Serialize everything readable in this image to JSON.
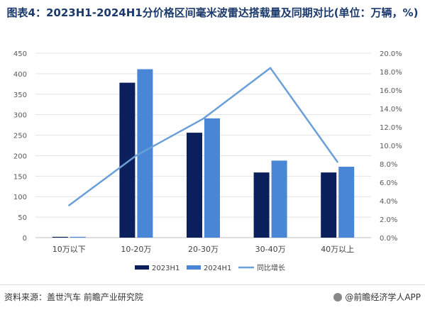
{
  "title": "图表4：2023H1-2024H1分价格区间毫米波雷达搭载量及同期对比(单位：万辆，%)",
  "footer": {
    "source": "资料来源：盖世汽车 前瞻产业研究院",
    "brand": "@前瞻经济学人APP"
  },
  "colors": {
    "s2023": "#0b1f5c",
    "s2024": "#4a86d6",
    "yoy": "#6a9fd8"
  },
  "chart_data": {
    "type": "bar",
    "categories": [
      "10万以下",
      "10-20万",
      "20-30万",
      "30-40万",
      "40万以上"
    ],
    "series": [
      {
        "name": "2023H1",
        "type": "bar",
        "values": [
          2,
          378,
          256,
          159,
          159
        ]
      },
      {
        "name": "2024H1",
        "type": "bar",
        "values": [
          2,
          411,
          291,
          188,
          173
        ]
      },
      {
        "name": "同比增长",
        "type": "line",
        "axis": "right",
        "values": [
          3.5,
          8.9,
          12.9,
          18.4,
          8.2
        ]
      }
    ],
    "yleft": {
      "min": 0,
      "max": 450,
      "ticks": [
        "0",
        "50",
        "100",
        "150",
        "200",
        "250",
        "300",
        "350",
        "400",
        "450"
      ]
    },
    "yright": {
      "min": 0,
      "max": 20,
      "ticks": [
        "0.0%",
        "2.0%",
        "4.0%",
        "6.0%",
        "8.0%",
        "10.0%",
        "12.0%",
        "14.0%",
        "16.0%",
        "18.0%",
        "20.0%"
      ]
    },
    "legend": [
      "2023H1",
      "2024H1",
      "同比增长"
    ],
    "legend_position": "bottom"
  }
}
